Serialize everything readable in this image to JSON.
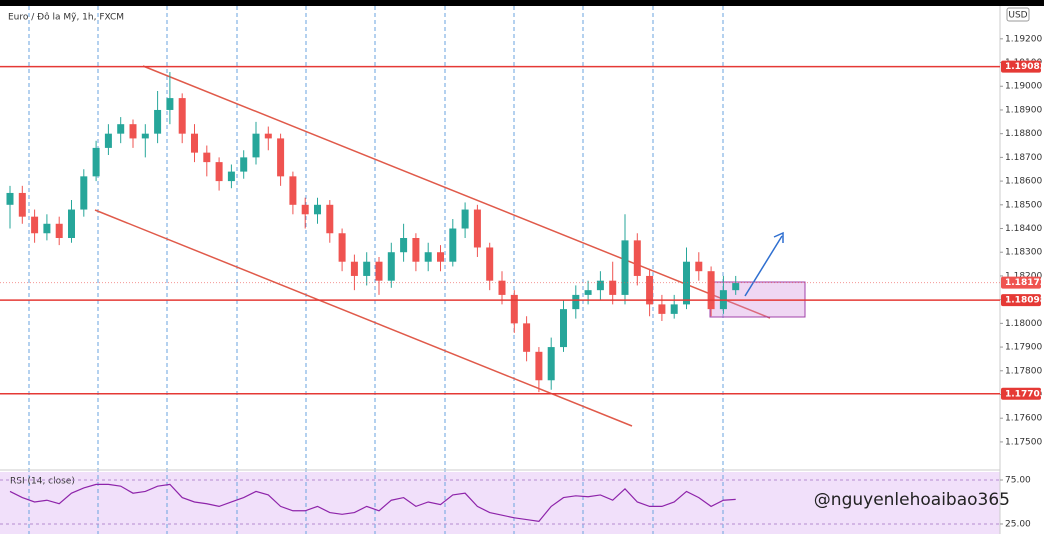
{
  "watermark": "@nguyenlehoaibao365",
  "chart_data": [
    {
      "type": "candlestick",
      "title": "Euro / Đô la Mỹ, 1h, FXCM",
      "unit": "USD",
      "up_color": "#26a69a",
      "down_color": "#ef5350",
      "level_color": "#e53935",
      "open": [
        1.185,
        1.1855,
        1.1845,
        1.1838,
        1.1842,
        1.1836,
        1.1848,
        1.1862,
        1.1874,
        1.188,
        1.1884,
        1.1878,
        1.188,
        1.189,
        1.1895,
        1.188,
        1.1872,
        1.1868,
        1.186,
        1.1864,
        1.187,
        1.188,
        1.1878,
        1.1862,
        1.185,
        1.1846,
        1.185,
        1.1838,
        1.1826,
        1.182,
        1.1826,
        1.1818,
        1.183,
        1.1836,
        1.1826,
        1.183,
        1.1826,
        1.184,
        1.1848,
        1.1832,
        1.1818,
        1.1812,
        1.18,
        1.1788,
        1.1776,
        1.179,
        1.1806,
        1.1812,
        1.1814,
        1.1818,
        1.1812,
        1.1835,
        1.182,
        1.1808,
        1.1804,
        1.1808,
        1.1826,
        1.1822,
        1.1806,
        1.1814
      ],
      "high": [
        1.1858,
        1.1858,
        1.1848,
        1.1846,
        1.1845,
        1.1852,
        1.1865,
        1.1877,
        1.1884,
        1.1887,
        1.1886,
        1.1884,
        1.1898,
        1.1906,
        1.1897,
        1.1884,
        1.1875,
        1.187,
        1.1867,
        1.1873,
        1.1885,
        1.1883,
        1.188,
        1.1864,
        1.1853,
        1.1853,
        1.1852,
        1.184,
        1.1829,
        1.183,
        1.1828,
        1.1834,
        1.1842,
        1.1838,
        1.1834,
        1.1833,
        1.1844,
        1.1851,
        1.185,
        1.1834,
        1.1822,
        1.1814,
        1.1803,
        1.179,
        1.1794,
        1.181,
        1.1816,
        1.1818,
        1.1822,
        1.1826,
        1.1846,
        1.1838,
        1.1823,
        1.1812,
        1.1812,
        1.1832,
        1.183,
        1.1824,
        1.182,
        1.182
      ],
      "low": [
        1.184,
        1.1842,
        1.1834,
        1.1835,
        1.1833,
        1.1834,
        1.1845,
        1.186,
        1.1871,
        1.1876,
        1.1874,
        1.187,
        1.1876,
        1.1884,
        1.1876,
        1.1868,
        1.1862,
        1.1856,
        1.1857,
        1.1861,
        1.1867,
        1.1873,
        1.1858,
        1.1846,
        1.184,
        1.1842,
        1.1834,
        1.1822,
        1.1814,
        1.1816,
        1.1812,
        1.1815,
        1.1826,
        1.1822,
        1.1822,
        1.1822,
        1.1824,
        1.1836,
        1.1828,
        1.1814,
        1.1808,
        1.1796,
        1.1784,
        1.1771,
        1.1772,
        1.1788,
        1.1802,
        1.1808,
        1.181,
        1.1808,
        1.1808,
        1.1816,
        1.1803,
        1.1801,
        1.1802,
        1.1806,
        1.1818,
        1.1803,
        1.1804,
        1.1812
      ],
      "close": [
        1.1855,
        1.1845,
        1.1838,
        1.1842,
        1.1836,
        1.1848,
        1.1862,
        1.1874,
        1.188,
        1.1884,
        1.1878,
        1.188,
        1.189,
        1.1895,
        1.188,
        1.1872,
        1.1868,
        1.186,
        1.1864,
        1.187,
        1.188,
        1.1878,
        1.1862,
        1.185,
        1.1846,
        1.185,
        1.1838,
        1.1826,
        1.182,
        1.1826,
        1.1818,
        1.183,
        1.1836,
        1.1826,
        1.183,
        1.1826,
        1.184,
        1.1848,
        1.1832,
        1.1818,
        1.1812,
        1.18,
        1.1788,
        1.1776,
        1.179,
        1.1806,
        1.1812,
        1.1814,
        1.1818,
        1.1812,
        1.1835,
        1.182,
        1.1808,
        1.1804,
        1.1808,
        1.1826,
        1.1822,
        1.1806,
        1.1814,
        1.1817
      ],
      "levels": [
        1.19083,
        1.18098,
        1.17703
      ],
      "last_price": 1.18172,
      "ylim": [
        1.1739,
        1.1933
      ],
      "yticks": [
        {
          "value": 1.192,
          "label": "1.19200"
        },
        {
          "value": 1.191,
          "label": "1.19100"
        },
        {
          "value": 1.19,
          "label": "1.19000"
        },
        {
          "value": 1.189,
          "label": "1.18900"
        },
        {
          "value": 1.188,
          "label": "1.18800"
        },
        {
          "value": 1.187,
          "label": "1.18700"
        },
        {
          "value": 1.186,
          "label": "1.18600"
        },
        {
          "value": 1.185,
          "label": "1.18500"
        },
        {
          "value": 1.184,
          "label": "1.18400"
        },
        {
          "value": 1.183,
          "label": "1.18300"
        },
        {
          "value": 1.182,
          "label": "1.18200"
        },
        {
          "value": 1.181,
          "label": "1.18100"
        },
        {
          "value": 1.18,
          "label": "1.18000"
        },
        {
          "value": 1.179,
          "label": "1.17900"
        },
        {
          "value": 1.178,
          "label": "1.17800"
        },
        {
          "value": 1.177,
          "label": "1.17700"
        },
        {
          "value": 1.176,
          "label": "1.17600"
        },
        {
          "value": 1.175,
          "label": "1.17500"
        }
      ]
    },
    {
      "type": "line",
      "title": "RSI (14, close)",
      "color": "#8e24aa",
      "values": [
        62,
        55,
        50,
        52,
        48,
        60,
        66,
        70,
        70,
        68,
        60,
        62,
        68,
        70,
        55,
        50,
        48,
        45,
        50,
        55,
        62,
        58,
        45,
        40,
        40,
        45,
        38,
        36,
        38,
        45,
        40,
        52,
        55,
        45,
        50,
        47,
        58,
        60,
        45,
        38,
        35,
        32,
        30,
        28,
        45,
        55,
        57,
        56,
        58,
        52,
        65,
        50,
        45,
        45,
        50,
        62,
        55,
        45,
        52,
        53
      ],
      "ylim": [
        13.6,
        84.1
      ],
      "yticks": [
        {
          "value": 75,
          "label": "75.00"
        },
        {
          "value": 25,
          "label": "25.00"
        }
      ]
    }
  ]
}
